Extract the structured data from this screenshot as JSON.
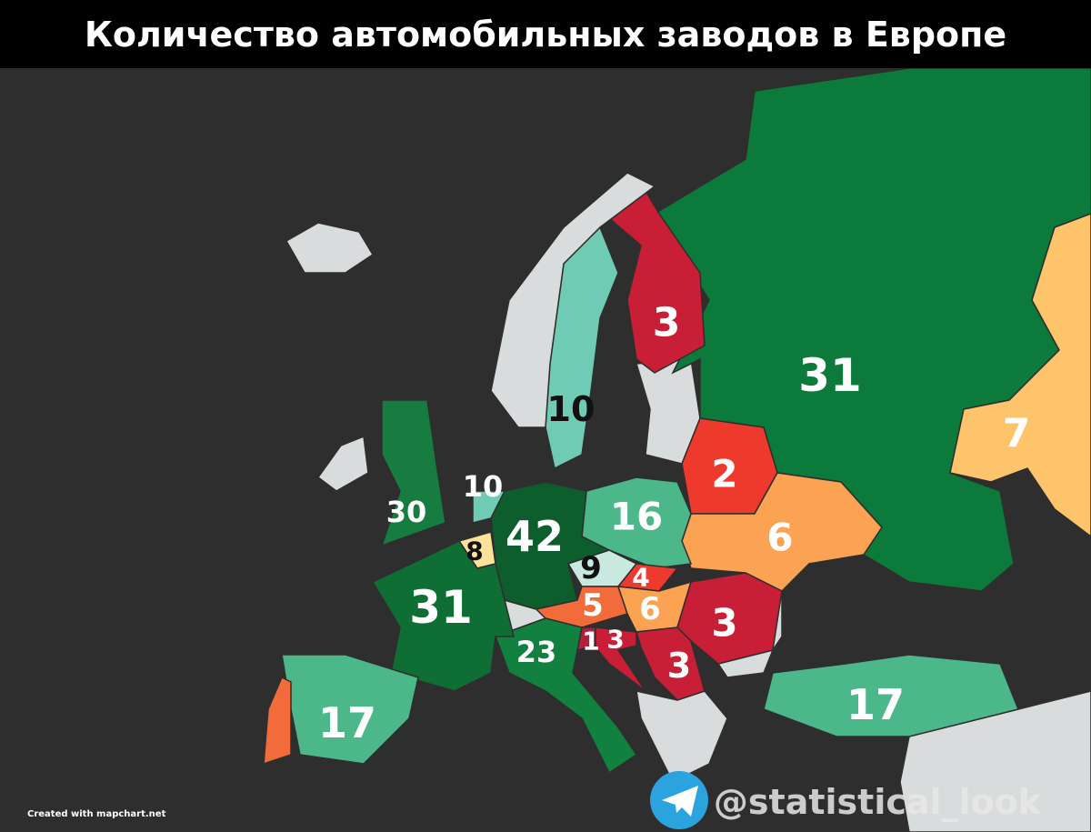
{
  "title": "Количество автомобильных заводов в Европе",
  "regions": [
    {
      "value": 31,
      "color": "#0c7a3a"
    },
    {
      "value": 7,
      "color": "#fec46c"
    },
    {
      "value": 3,
      "color": "#c81e36"
    },
    {
      "value": 10,
      "color": "#6fcbb4"
    },
    {
      "color": "#d9dcdd"
    },
    {
      "value": 2,
      "color": "#ee3a2c"
    },
    {
      "value": 6,
      "color": "#fba253"
    },
    {
      "value": 16,
      "color": "#4cb88a"
    },
    {
      "value": 42,
      "color": "#0d5e2c"
    },
    {
      "value": 10,
      "color": "#6fcbb4"
    },
    {
      "value": 8,
      "color": "#ffe29a"
    },
    {
      "value": 9,
      "color": "#c9e8df"
    },
    {
      "value": 4,
      "color": "#ee3a2c"
    },
    {
      "value": 5,
      "color": "#f26b3a"
    },
    {
      "value": 6,
      "color": "#fba253"
    },
    {
      "value": 3,
      "color": "#c81e36"
    },
    {
      "value": 1,
      "color": "#b0203a"
    },
    {
      "value": 3,
      "color": "#c81e36"
    },
    {
      "value": 3,
      "color": "#c81e36"
    },
    {
      "value": 23,
      "color": "#12803e"
    },
    {
      "value": 31,
      "color": "#0f6e34"
    },
    {
      "value": 30,
      "color": "#167c40"
    },
    {
      "value": 17,
      "color": "#4cb88a"
    },
    {
      "color": "#f26b3a"
    },
    {
      "value": 17,
      "color": "#4cb88a"
    }
  ],
  "credit": "Created with mapchart.net",
  "watermark": "@statistical_look"
}
